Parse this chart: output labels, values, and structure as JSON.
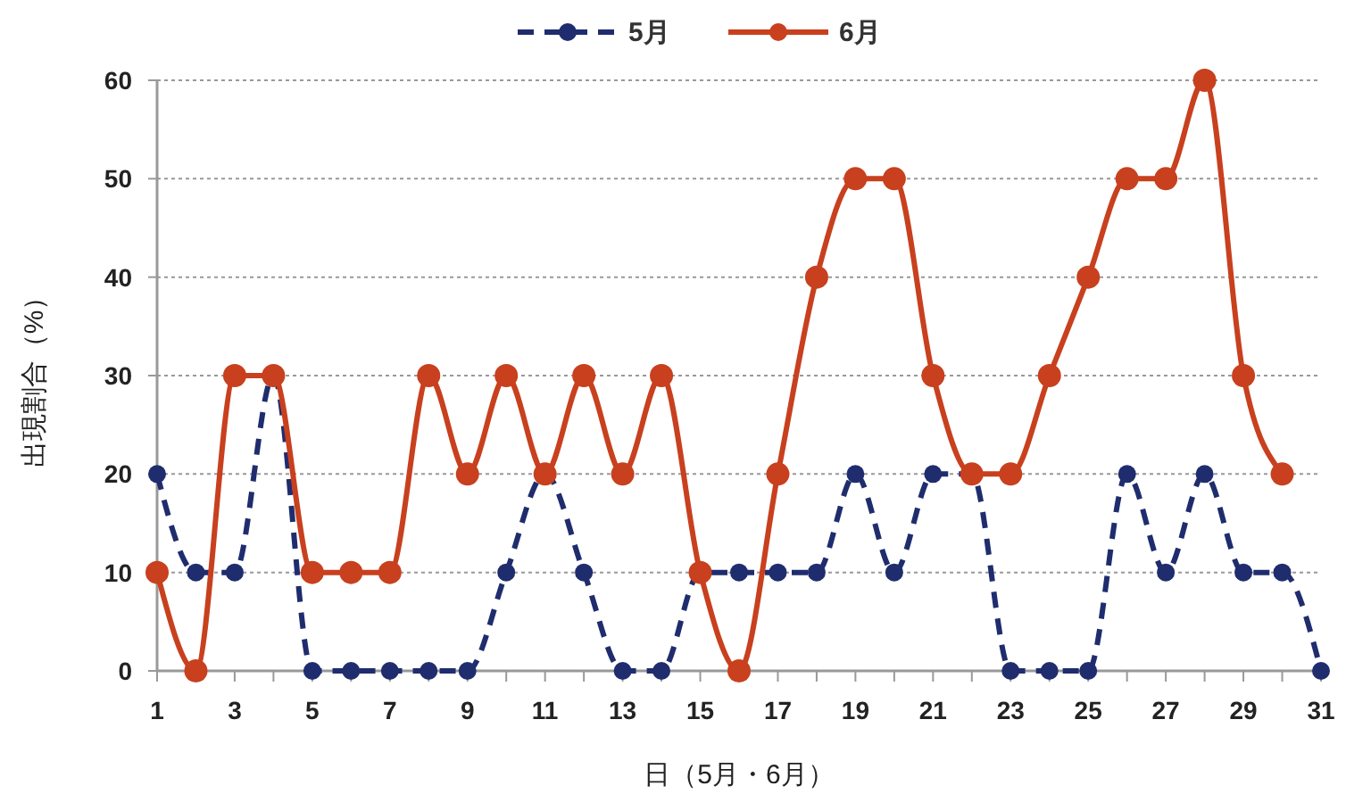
{
  "chart_data": {
    "type": "line",
    "xlabel": "日（5月・6月）",
    "ylabel": "出現割合（%）",
    "xlim": [
      1,
      31
    ],
    "ylim": [
      0,
      60
    ],
    "yticks": [
      0,
      10,
      20,
      30,
      40,
      50,
      60
    ],
    "xticks": [
      1,
      {
        "value": 2,
        "label": null
      },
      3,
      {
        "value": 4,
        "label": null
      },
      5,
      {
        "value": 6,
        "label": null
      },
      7,
      {
        "value": 8,
        "label": null
      },
      9,
      {
        "value": 10,
        "label": null
      },
      11,
      {
        "value": 12,
        "label": null
      },
      13,
      {
        "value": 14,
        "label": null
      },
      15,
      {
        "value": 16,
        "label": null
      },
      17,
      {
        "value": 18,
        "label": null
      },
      19,
      {
        "value": 20,
        "label": null
      },
      21,
      {
        "value": 22,
        "label": null
      },
      23,
      {
        "value": 24,
        "label": null
      },
      25,
      {
        "value": 26,
        "label": null
      },
      27,
      {
        "value": 28,
        "label": null
      },
      29,
      {
        "value": 30,
        "label": null
      },
      31
    ],
    "grid": "y",
    "legend": "top",
    "marker": "circle",
    "series": [
      {
        "name": "5月",
        "color": "#1f2d6e",
        "line_style": "dashed",
        "x": [
          1,
          2,
          3,
          4,
          5,
          6,
          7,
          8,
          9,
          10,
          11,
          12,
          13,
          14,
          15,
          16,
          17,
          18,
          19,
          20,
          21,
          22,
          23,
          24,
          25,
          26,
          27,
          28,
          29,
          30,
          31
        ],
        "values": [
          20,
          10,
          10,
          30,
          0,
          0,
          0,
          0,
          0,
          10,
          20,
          10,
          0,
          0,
          10,
          10,
          10,
          10,
          20,
          10,
          20,
          20,
          0,
          0,
          0,
          20,
          10,
          20,
          10,
          10,
          0
        ]
      },
      {
        "name": "6月",
        "color": "#c8401e",
        "line_style": "solid",
        "x": [
          1,
          2,
          3,
          4,
          5,
          6,
          7,
          8,
          9,
          10,
          11,
          12,
          13,
          14,
          15,
          16,
          17,
          18,
          19,
          20,
          21,
          22,
          23,
          24,
          25,
          26,
          27,
          28,
          29,
          30
        ],
        "values": [
          10,
          0,
          30,
          30,
          10,
          10,
          10,
          30,
          20,
          30,
          20,
          30,
          20,
          30,
          10,
          0,
          20,
          40,
          50,
          50,
          30,
          20,
          20,
          30,
          40,
          50,
          50,
          60,
          30,
          20
        ]
      }
    ]
  }
}
